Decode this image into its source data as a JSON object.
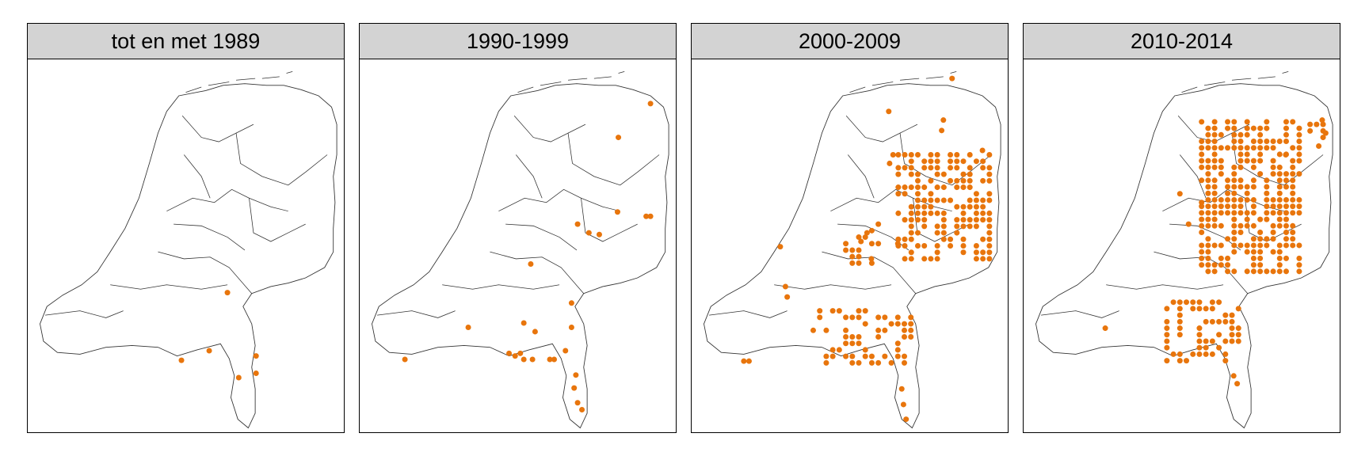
{
  "panels": [
    {
      "title": "tot en met 1989"
    },
    {
      "title": "1990-1999"
    },
    {
      "title": "2000-2009"
    },
    {
      "title": "2010-2014"
    }
  ]
}
